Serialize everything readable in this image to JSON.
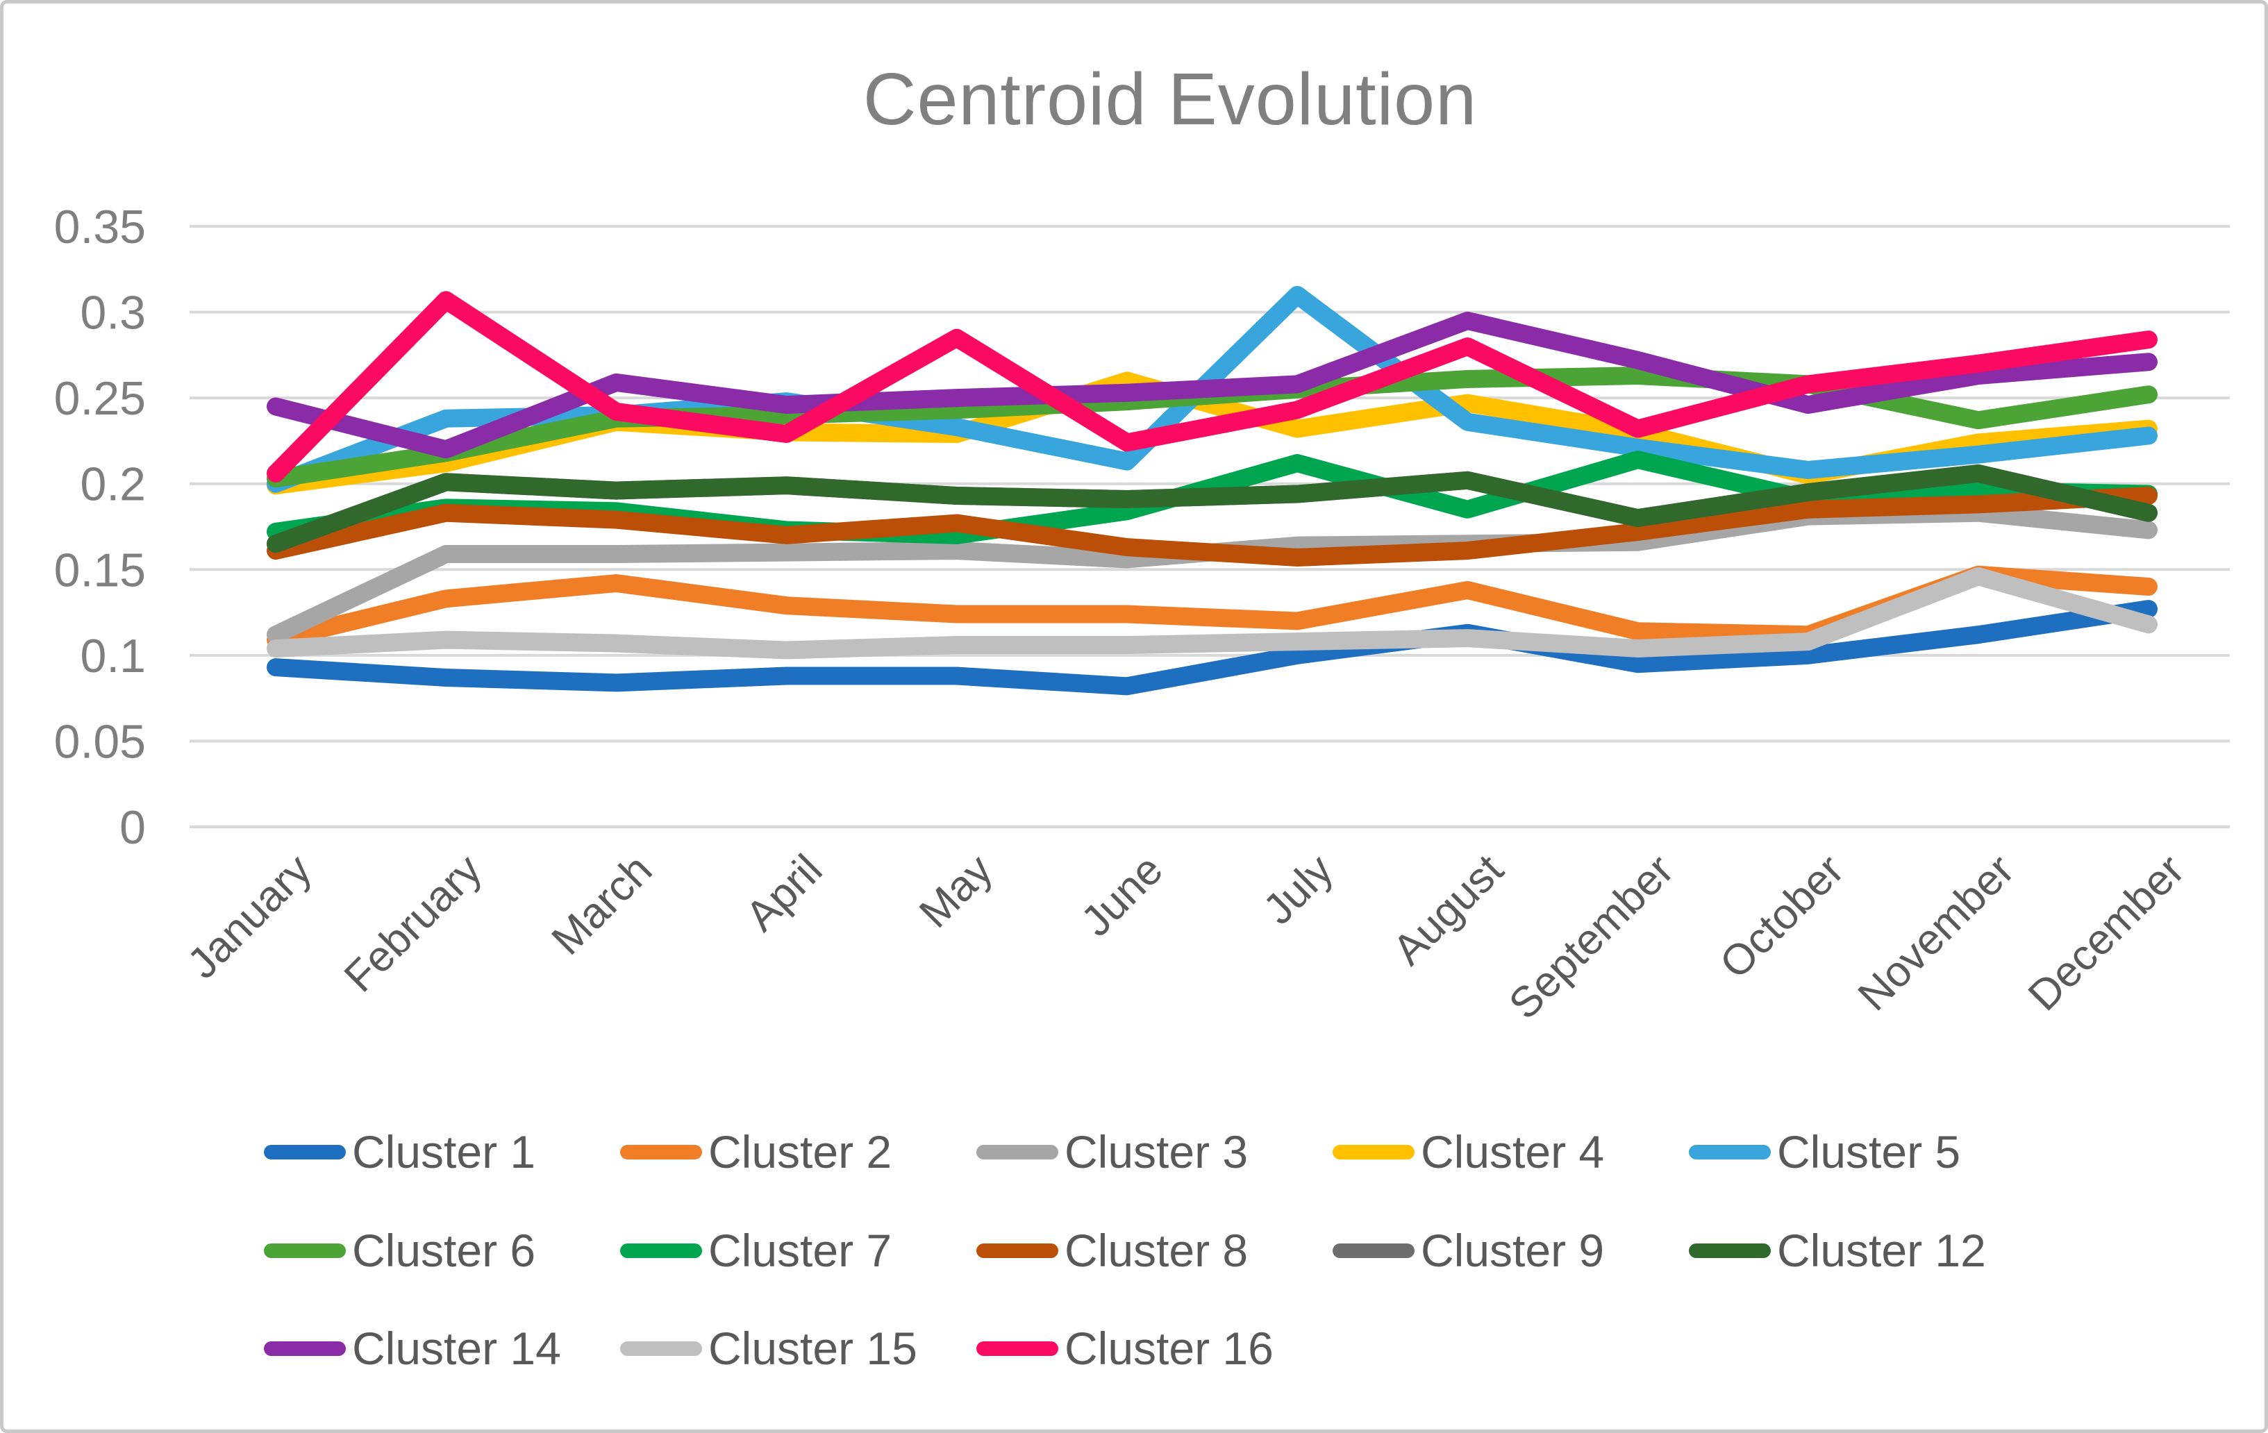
{
  "frame": {
    "background": "#ffffff",
    "border_color": "#c9c9c9",
    "gridline_color": "#d9d9d9",
    "title_color": "#808080",
    "axis_label_color": "#595959",
    "ytick_color": "#7f7f7f"
  },
  "chart_data": {
    "type": "line",
    "title": "Centroid Evolution",
    "xlabel": "",
    "ylabel": "",
    "grid": "horizontal",
    "legend_position": "bottom",
    "ylim": [
      0,
      0.35
    ],
    "y_tick_labels": [
      "0",
      "0.05",
      "0.1",
      "0.15",
      "0.2",
      "0.25",
      "0.3",
      "0.35"
    ],
    "y_tick_values": [
      0,
      0.05,
      0.1,
      0.15,
      0.2,
      0.25,
      0.3,
      0.35
    ],
    "categories": [
      "January",
      "February",
      "March",
      "April",
      "May",
      "June",
      "July",
      "August",
      "September",
      "October",
      "November",
      "December"
    ],
    "series": [
      {
        "name": "Cluster 1",
        "color": "#1f6fc0",
        "values": [
          0.093,
          0.087,
          0.084,
          0.088,
          0.088,
          0.082,
          0.1,
          0.113,
          0.095,
          0.1,
          0.112,
          0.127
        ]
      },
      {
        "name": "Cluster 2",
        "color": "#f07e27",
        "values": [
          0.109,
          0.133,
          0.142,
          0.129,
          0.124,
          0.124,
          0.12,
          0.138,
          0.114,
          0.112,
          0.147,
          0.14
        ]
      },
      {
        "name": "Cluster 3",
        "color": "#a6a6a6",
        "values": [
          0.112,
          0.159,
          0.159,
          0.16,
          0.161,
          0.156,
          0.164,
          0.165,
          0.166,
          0.181,
          0.183,
          0.173
        ]
      },
      {
        "name": "Cluster 4",
        "color": "#ffc000",
        "values": [
          0.199,
          0.212,
          0.236,
          0.23,
          0.229,
          0.26,
          0.232,
          0.247,
          0.23,
          0.205,
          0.224,
          0.232
        ]
      },
      {
        "name": "Cluster 5",
        "color": "#38a5dc",
        "values": [
          0.2,
          0.238,
          0.24,
          0.248,
          0.233,
          0.213,
          0.31,
          0.236,
          0.221,
          0.208,
          0.217,
          0.228
        ]
      },
      {
        "name": "Cluster 6",
        "color": "#4ca336",
        "values": [
          0.203,
          0.218,
          0.238,
          0.24,
          0.243,
          0.248,
          0.255,
          0.261,
          0.263,
          0.258,
          0.237,
          0.252
        ]
      },
      {
        "name": "Cluster 7",
        "color": "#00a550",
        "values": [
          0.172,
          0.186,
          0.184,
          0.173,
          0.17,
          0.184,
          0.212,
          0.185,
          0.214,
          0.191,
          0.196,
          0.194
        ]
      },
      {
        "name": "Cluster 8",
        "color": "#bc4f08",
        "values": [
          0.161,
          0.183,
          0.179,
          0.17,
          0.177,
          0.163,
          0.157,
          0.161,
          0.172,
          0.185,
          0.188,
          0.193
        ]
      },
      {
        "name": "Cluster 9",
        "color": "#6e6e6e",
        "values": [
          0.165,
          0.201,
          0.196,
          0.199,
          0.193,
          0.191,
          0.194,
          0.202,
          0.18,
          0.195,
          0.206,
          0.183
        ]
      },
      {
        "name": "Cluster 12",
        "color": "#31682b",
        "values": [
          0.165,
          0.201,
          0.196,
          0.199,
          0.193,
          0.191,
          0.194,
          0.202,
          0.18,
          0.195,
          0.206,
          0.183
        ]
      },
      {
        "name": "Cluster 14",
        "color": "#8a2ba8",
        "values": [
          0.245,
          0.22,
          0.259,
          0.246,
          0.25,
          0.253,
          0.258,
          0.295,
          0.272,
          0.246,
          0.263,
          0.271
        ]
      },
      {
        "name": "Cluster 15",
        "color": "#bfbfbf",
        "values": [
          0.104,
          0.109,
          0.107,
          0.103,
          0.106,
          0.106,
          0.108,
          0.11,
          0.104,
          0.108,
          0.146,
          0.118
        ]
      },
      {
        "name": "Cluster 16",
        "color": "#fa0a61",
        "values": [
          0.206,
          0.307,
          0.242,
          0.229,
          0.285,
          0.224,
          0.243,
          0.28,
          0.232,
          0.258,
          0.27,
          0.284
        ]
      }
    ]
  }
}
